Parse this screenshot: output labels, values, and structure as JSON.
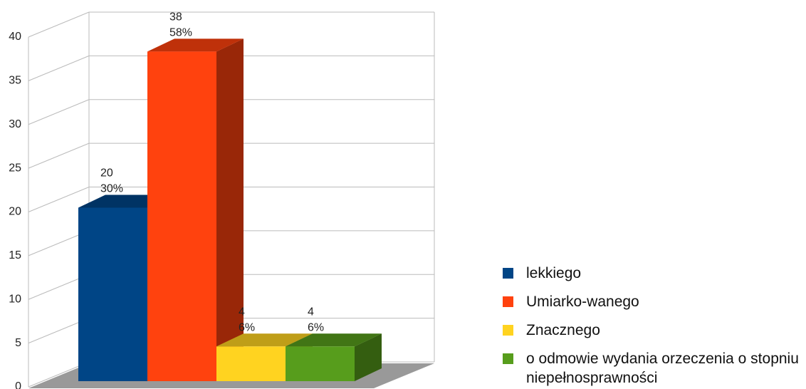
{
  "chart_data": {
    "type": "bar",
    "series": [
      {
        "name": "lekkiego",
        "color": "#004586",
        "values": [
          20
        ]
      },
      {
        "name": "Umiarko-wanego",
        "color": "#ff420e",
        "values": [
          38
        ]
      },
      {
        "name": "Znacznego",
        "color": "#ffd320",
        "values": [
          4
        ]
      },
      {
        "name": "o odmowie wydania orzeczenia o stopniu niepełnosprawności",
        "color": "#579d1c",
        "values": [
          4
        ]
      }
    ],
    "percent_labels": [
      "30%",
      "58%",
      "6%",
      "6%"
    ],
    "ylim": [
      0,
      40
    ],
    "yticks": [
      0,
      5,
      10,
      15,
      20,
      25,
      30,
      35,
      40
    ],
    "grid": true,
    "legend": "right"
  }
}
